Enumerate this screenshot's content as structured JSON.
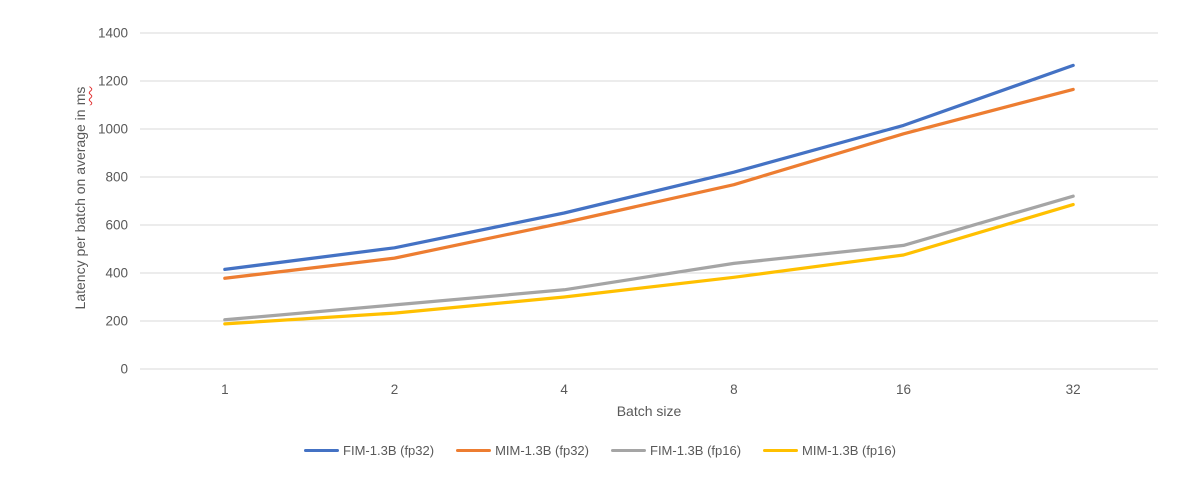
{
  "chart_data": {
    "type": "line",
    "title": "",
    "xlabel": "Batch size",
    "ylabel": "Latency per batch on average in ms",
    "categories": [
      "1",
      "2",
      "4",
      "8",
      "16",
      "32"
    ],
    "y_ticks": [
      0,
      200,
      400,
      600,
      800,
      1000,
      1200,
      1400
    ],
    "ylim": [
      0,
      1400
    ],
    "grid": "horizontal",
    "legend_position": "bottom",
    "gridline_color": "#D9D9D9",
    "axis_text_color": "#595959",
    "series": [
      {
        "name": "FIM-1.3B (fp32)",
        "color": "#4472C4",
        "values": [
          415,
          505,
          650,
          820,
          1015,
          1265
        ]
      },
      {
        "name": "MIM-1.3B (fp32)",
        "color": "#ED7D31",
        "values": [
          378,
          462,
          610,
          768,
          980,
          1165
        ]
      },
      {
        "name": "FIM-1.3B (fp16)",
        "color": "#A5A5A5",
        "values": [
          205,
          267,
          330,
          440,
          515,
          720
        ]
      },
      {
        "name": "MIM-1.3B (fp16)",
        "color": "#FFC000",
        "values": [
          188,
          233,
          300,
          382,
          475,
          685
        ]
      }
    ]
  },
  "axes": {
    "y_title_prefix": "Latency per batch on average in",
    "y_title_spellchecked_word": "ms",
    "x_title": "Batch size",
    "spellcheck_underline_color": "#E02F2F"
  }
}
